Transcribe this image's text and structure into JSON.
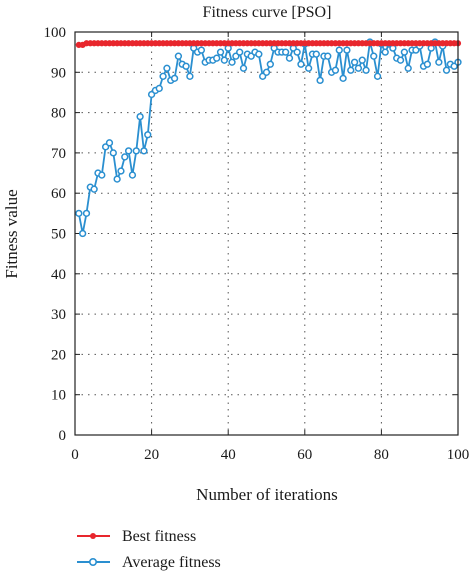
{
  "chart_data": {
    "type": "line",
    "title": "Fitness curve [PSO]",
    "xlabel": "Number of iterations",
    "ylabel": "Fitness value",
    "xlim": [
      0,
      100
    ],
    "ylim": [
      0,
      100
    ],
    "xticks": [
      0,
      20,
      40,
      60,
      80,
      100
    ],
    "yticks": [
      0,
      10,
      20,
      30,
      40,
      50,
      60,
      70,
      80,
      90,
      100
    ],
    "grid": true,
    "legend_position": "bottom-left",
    "series": [
      {
        "name": "Best fitness",
        "color": "#e8262d",
        "marker": "filled-circle",
        "x": [
          1,
          2,
          3,
          4,
          5,
          6,
          7,
          8,
          9,
          10,
          11,
          12,
          13,
          14,
          15,
          16,
          17,
          18,
          19,
          20,
          21,
          22,
          23,
          24,
          25,
          26,
          27,
          28,
          29,
          30,
          31,
          32,
          33,
          34,
          35,
          36,
          37,
          38,
          39,
          40,
          41,
          42,
          43,
          44,
          45,
          46,
          47,
          48,
          49,
          50,
          51,
          52,
          53,
          54,
          55,
          56,
          57,
          58,
          59,
          60,
          61,
          62,
          63,
          64,
          65,
          66,
          67,
          68,
          69,
          70,
          71,
          72,
          73,
          74,
          75,
          76,
          77,
          78,
          79,
          80,
          81,
          82,
          83,
          84,
          85,
          86,
          87,
          88,
          89,
          90,
          91,
          92,
          93,
          94,
          95,
          96,
          97,
          98,
          99,
          100
        ],
        "y": [
          96.8,
          96.8,
          97.2,
          97.2,
          97.2,
          97.2,
          97.2,
          97.2,
          97.2,
          97.2,
          97.2,
          97.2,
          97.2,
          97.2,
          97.2,
          97.2,
          97.2,
          97.2,
          97.2,
          97.2,
          97.2,
          97.2,
          97.2,
          97.2,
          97.2,
          97.2,
          97.2,
          97.2,
          97.2,
          97.2,
          97.2,
          97.2,
          97.2,
          97.2,
          97.2,
          97.2,
          97.2,
          97.2,
          97.2,
          97.2,
          97.2,
          97.2,
          97.2,
          97.2,
          97.2,
          97.2,
          97.2,
          97.2,
          97.2,
          97.2,
          97.2,
          97.2,
          97.2,
          97.2,
          97.2,
          97.2,
          97.2,
          97.2,
          97.2,
          97.2,
          97.2,
          97.2,
          97.2,
          97.2,
          97.2,
          97.2,
          97.2,
          97.2,
          97.2,
          97.2,
          97.2,
          97.2,
          97.2,
          97.2,
          97.2,
          97.2,
          97.2,
          97.2,
          97.2,
          97.2,
          97.2,
          97.2,
          97.2,
          97.2,
          97.2,
          97.2,
          97.2,
          97.2,
          97.2,
          97.2,
          97.2,
          97.2,
          97.2,
          97.2,
          97.2,
          97.2,
          97.2,
          97.2,
          97.2,
          97.2
        ]
      },
      {
        "name": "Average fitness",
        "color": "#2a8fd0",
        "marker": "open-circle",
        "x": [
          1,
          2,
          3,
          4,
          5,
          6,
          7,
          8,
          9,
          10,
          11,
          12,
          13,
          14,
          15,
          16,
          17,
          18,
          19,
          20,
          21,
          22,
          23,
          24,
          25,
          26,
          27,
          28,
          29,
          30,
          31,
          32,
          33,
          34,
          35,
          36,
          37,
          38,
          39,
          40,
          41,
          42,
          43,
          44,
          45,
          46,
          47,
          48,
          49,
          50,
          51,
          52,
          53,
          54,
          55,
          56,
          57,
          58,
          59,
          60,
          61,
          62,
          63,
          64,
          65,
          66,
          67,
          68,
          69,
          70,
          71,
          72,
          73,
          74,
          75,
          76,
          77,
          78,
          79,
          80,
          81,
          82,
          83,
          84,
          85,
          86,
          87,
          88,
          89,
          90,
          91,
          92,
          93,
          94,
          95,
          96,
          97,
          98,
          99,
          100
        ],
        "y": [
          55,
          50,
          55,
          61.5,
          61,
          65,
          64.5,
          71.5,
          72.5,
          70,
          63.5,
          65.5,
          69,
          70.5,
          64.5,
          70.5,
          79,
          70.5,
          74.5,
          84.5,
          85.5,
          86,
          89,
          91,
          88,
          88.5,
          94,
          92,
          91.5,
          89,
          96,
          95,
          95.5,
          92.5,
          93,
          93,
          93.5,
          95,
          93,
          96,
          92.5,
          94,
          95,
          91,
          94.5,
          94,
          95,
          94.5,
          89,
          90,
          92,
          96,
          95,
          95,
          95,
          93.5,
          96,
          95,
          92,
          97,
          91,
          94.5,
          94.5,
          88,
          94,
          94,
          90,
          90.5,
          95.5,
          88.5,
          95.5,
          90.5,
          92.5,
          91,
          93,
          90.5,
          97.5,
          94,
          89,
          97,
          95,
          97,
          96,
          93.5,
          93,
          95,
          91,
          95.5,
          95.5,
          96.5,
          91.5,
          92,
          96,
          97.5,
          92.5,
          96.5,
          90.5,
          92,
          91.5,
          92.5
        ]
      }
    ]
  }
}
